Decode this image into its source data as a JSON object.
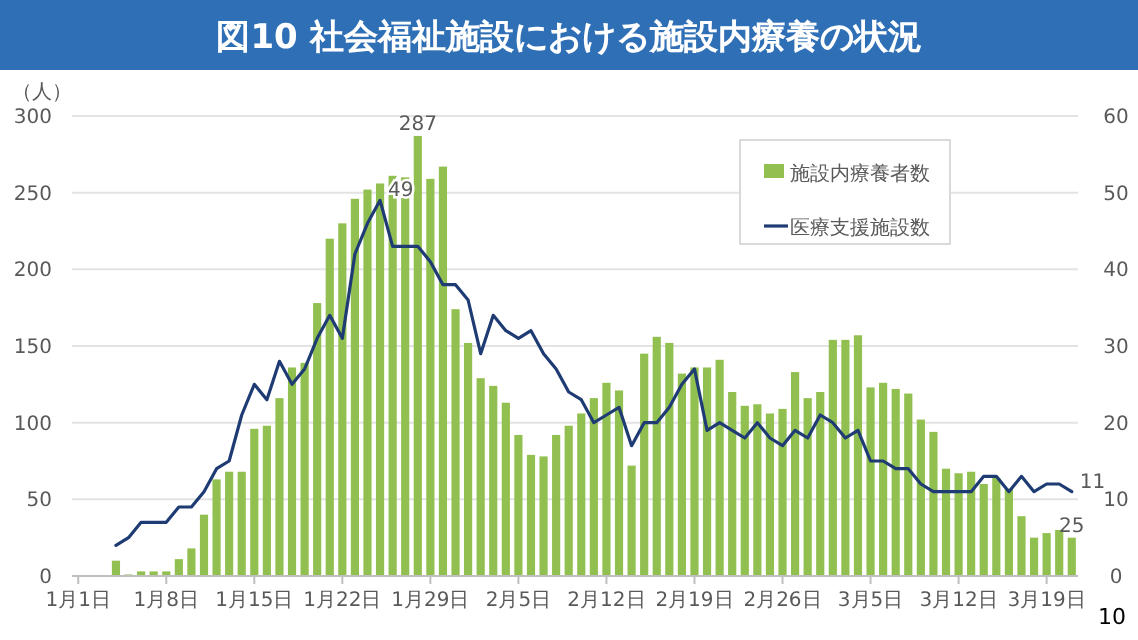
{
  "chart_data": {
    "type": "bar",
    "title": "図10 社会福祉施設における施設内療養の状況",
    "ylabel": "（人）",
    "categories": [
      "1月1日",
      null,
      null,
      null,
      null,
      null,
      null,
      "1月8日",
      null,
      null,
      null,
      null,
      null,
      null,
      "1月15日",
      null,
      null,
      null,
      null,
      null,
      null,
      "1月22日",
      null,
      null,
      null,
      null,
      null,
      null,
      "1月29日",
      null,
      null,
      null,
      null,
      null,
      null,
      "2月5日",
      null,
      null,
      null,
      null,
      null,
      null,
      "2月12日",
      null,
      null,
      null,
      null,
      null,
      null,
      "2月19日",
      null,
      null,
      null,
      null,
      null,
      null,
      "2月26日",
      null,
      null,
      null,
      null,
      null,
      null,
      "3月5日",
      null,
      null,
      null,
      null,
      null,
      null,
      "3月12日",
      null,
      null,
      null,
      null,
      null,
      null,
      "3月19日",
      null,
      null
    ],
    "series": [
      {
        "name": "施設内療養者数",
        "color": "#92c050",
        "values": [
          null,
          null,
          null,
          10,
          1,
          3,
          3,
          3,
          11,
          18,
          40,
          63,
          68,
          68,
          96,
          98,
          116,
          136,
          139,
          178,
          220,
          230,
          246,
          252,
          256,
          261,
          260,
          287,
          259,
          267,
          174,
          152,
          129,
          124,
          113,
          92,
          79,
          78,
          92,
          98,
          106,
          116,
          126,
          121,
          72,
          145,
          156,
          152,
          132,
          136,
          136,
          141,
          120,
          111,
          112,
          106,
          109,
          133,
          116,
          120,
          154,
          154,
          157,
          123,
          126,
          122,
          119,
          102,
          94,
          70,
          67,
          68,
          60,
          64,
          57,
          39,
          25,
          28,
          30,
          25
        ],
        "value_labels": [
          null,
          null,
          null,
          null,
          null,
          null,
          null,
          null,
          null,
          null,
          null,
          null,
          null,
          null,
          null,
          null,
          null,
          null,
          null,
          null,
          null,
          null,
          null,
          null,
          null,
          null,
          null,
          "287",
          null,
          null,
          null,
          null,
          null,
          null,
          null,
          null,
          null,
          null,
          null,
          null,
          null,
          null,
          null,
          null,
          null,
          null,
          null,
          null,
          null,
          null,
          null,
          null,
          null,
          null,
          null,
          null,
          null,
          null,
          null,
          null,
          null,
          null,
          null,
          null,
          null,
          null,
          null,
          null,
          null,
          null,
          null,
          null,
          null,
          null,
          null,
          null,
          null,
          null,
          null,
          "25"
        ]
      },
      {
        "name": "医療支援施設数",
        "type": "line",
        "axis": "y2",
        "color": "#1f3b73",
        "values": [
          null,
          null,
          null,
          4,
          5,
          7,
          7,
          7,
          9,
          9,
          11,
          14,
          15,
          21,
          25,
          23,
          28,
          25,
          27,
          31,
          34,
          31,
          42,
          46,
          49,
          43,
          43,
          43,
          41,
          38,
          38,
          36,
          29,
          34,
          32,
          31,
          32,
          29,
          27,
          24,
          23,
          20,
          21,
          22,
          17,
          20,
          20,
          22,
          25,
          27,
          19,
          20,
          19,
          18,
          20,
          18,
          17,
          19,
          18,
          21,
          20,
          18,
          19,
          15,
          15,
          14,
          14,
          12,
          11,
          11,
          11,
          11,
          13,
          13,
          11,
          13,
          11,
          12,
          12,
          11
        ],
        "value_labels": [
          null,
          null,
          null,
          null,
          null,
          null,
          null,
          null,
          null,
          null,
          null,
          null,
          null,
          null,
          null,
          null,
          null,
          null,
          null,
          null,
          null,
          null,
          null,
          null,
          "49",
          null,
          null,
          null,
          null,
          null,
          null,
          null,
          null,
          null,
          null,
          null,
          null,
          null,
          null,
          null,
          null,
          null,
          null,
          null,
          null,
          null,
          null,
          null,
          null,
          null,
          null,
          null,
          null,
          null,
          null,
          null,
          null,
          null,
          null,
          null,
          null,
          null,
          null,
          null,
          null,
          null,
          null,
          null,
          null,
          null,
          null,
          null,
          null,
          null,
          null,
          null,
          null,
          null,
          null,
          "11"
        ]
      }
    ],
    "ylim": [
      0,
      300
    ],
    "yticks": [
      0,
      50,
      100,
      150,
      200,
      250,
      300
    ],
    "y2lim": [
      0,
      60
    ],
    "y2ticks": [
      0,
      10,
      20,
      30,
      40,
      50,
      60
    ],
    "grid": "y",
    "legend": "top right",
    "annotations": [
      "10"
    ]
  }
}
